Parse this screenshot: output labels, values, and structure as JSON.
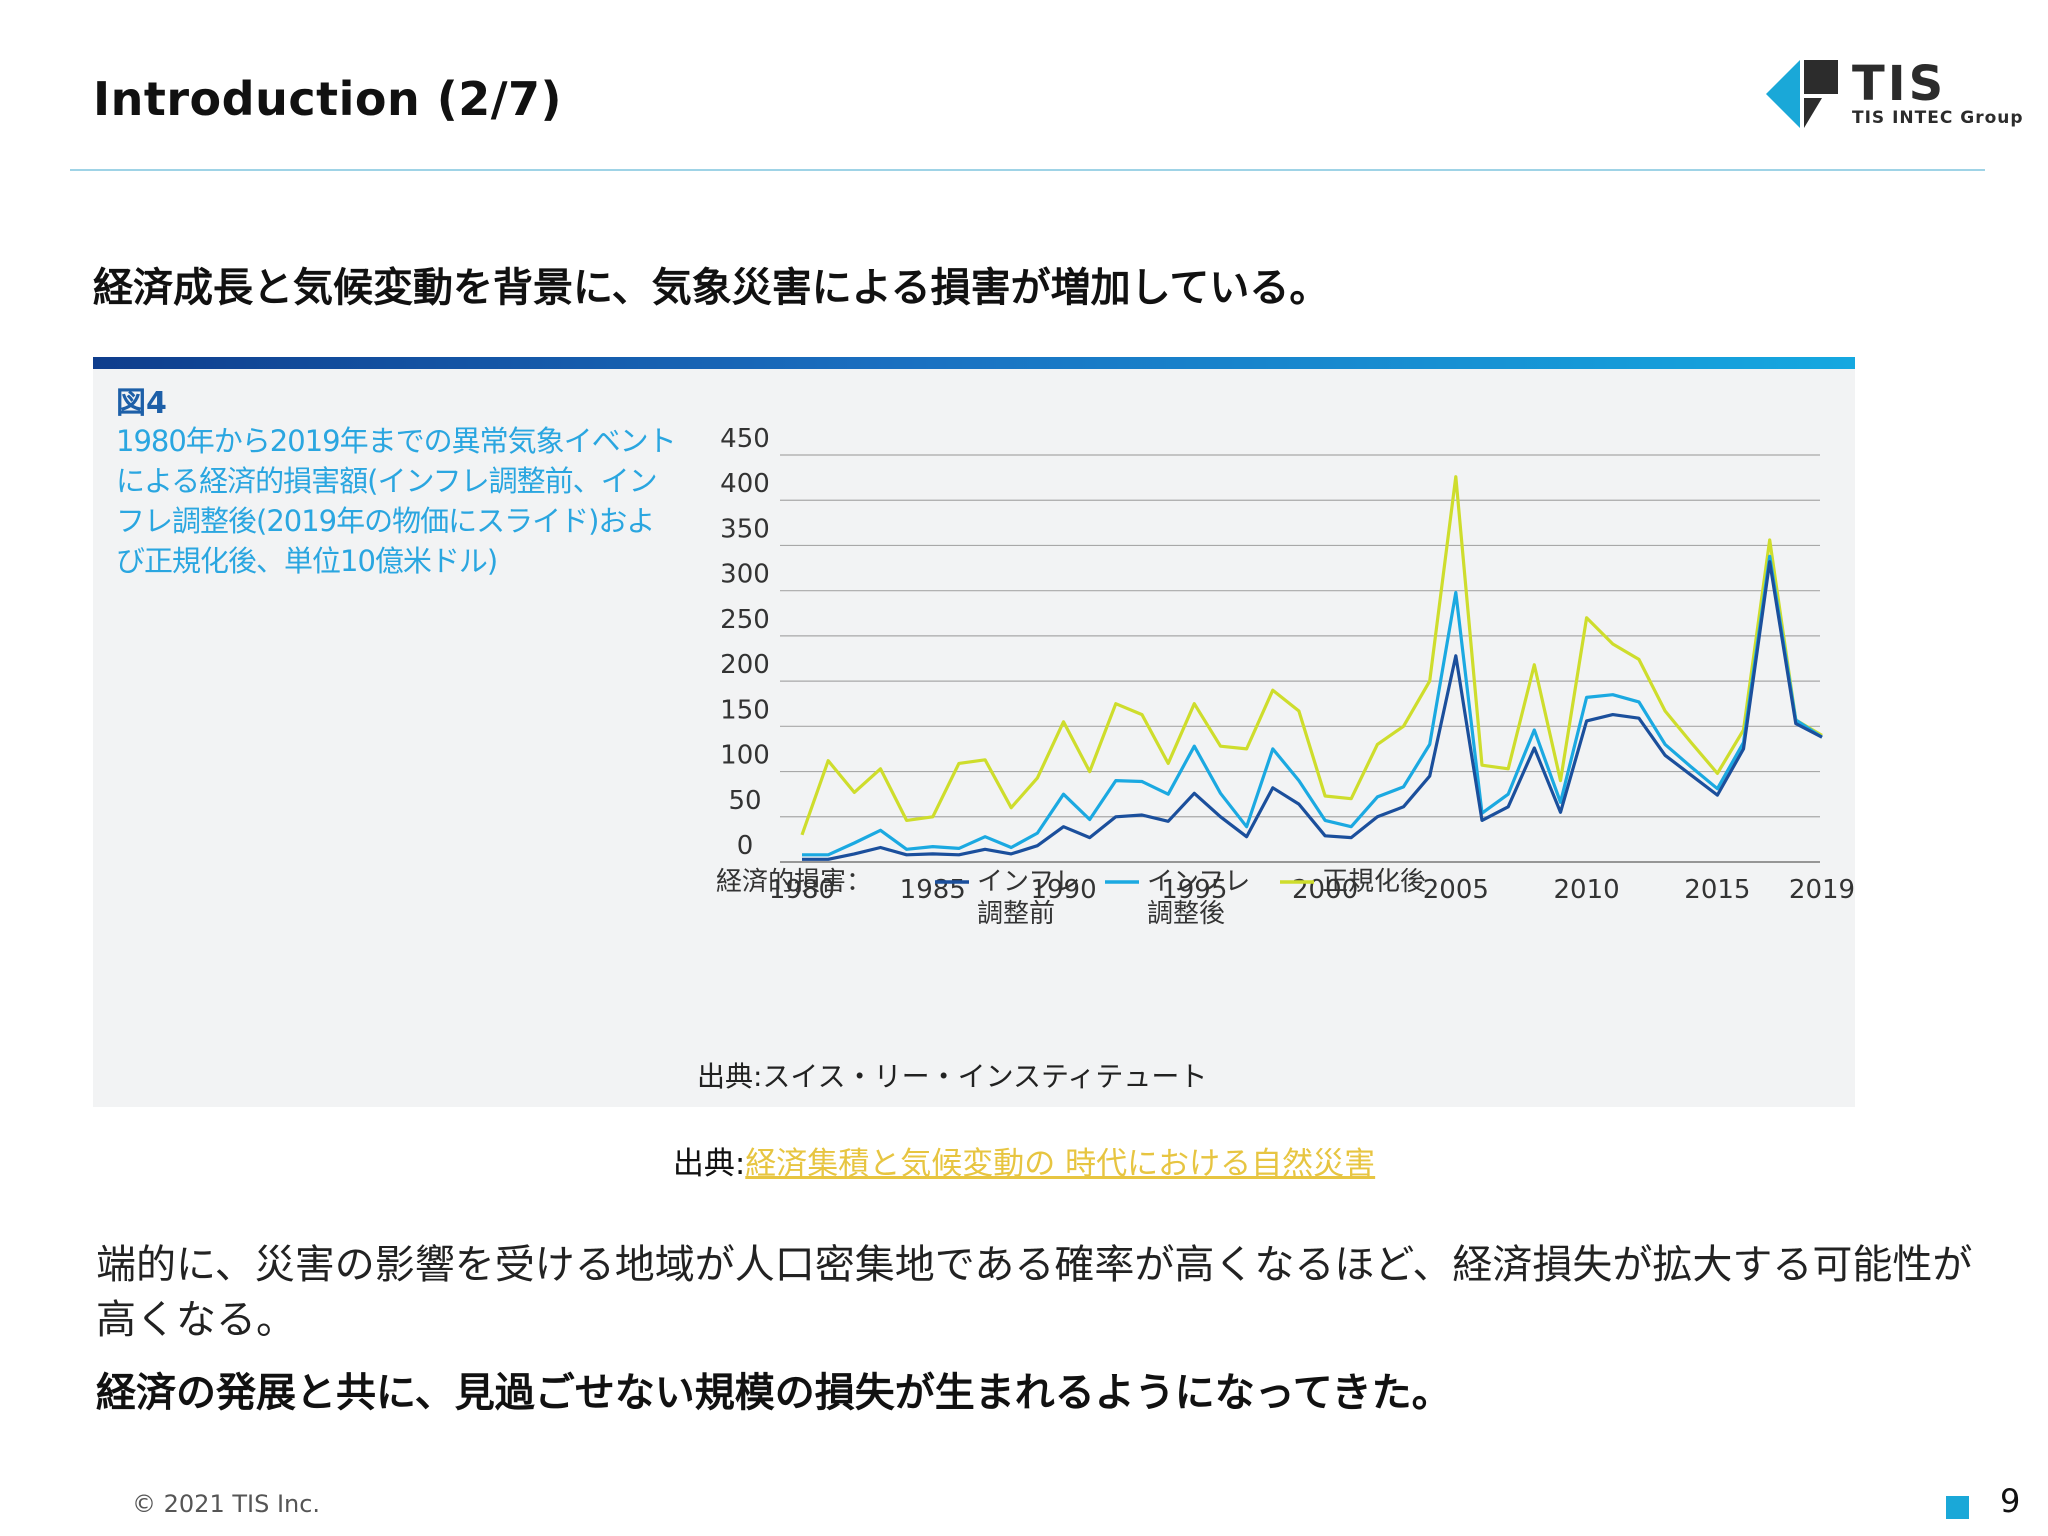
{
  "slide": {
    "title": "Introduction (2/7)",
    "headline": "経済成長と気候変動を背景に、気象災害による損害が増加している。",
    "logo": {
      "name": "TIS",
      "subtitle": "TIS INTEC Group",
      "colors": {
        "primary": "#1aa8d8",
        "dark": "#2c2c2c"
      }
    },
    "figure": {
      "label": "図4",
      "description_lines": [
        "1980年から2019年までの異常気象イベント",
        "による経済的損害額(インフレ調整前、イン",
        "フレ調整後(2019年の物価にスライド)およ",
        "び正規化後、単位10億米ドル)"
      ],
      "legend_prefix": "経済的損害：",
      "source": "出典:スイス・リー・インスティテュート"
    },
    "source_label": "出典:",
    "source_link_text": "経済集積と気候変動の 時代における自然災害",
    "body_text": "端的に、災害の影響を受ける地域が人口密集地である確率が高くなるほど、経済損失が拡大する可能性が高くなる。",
    "body_emphasis": "経済の発展と共に、見過ごせない規模の損失が生まれるようになってきた。",
    "footer": {
      "copyright": "© 2021 TIS Inc.",
      "page": "9"
    }
  },
  "chart_data": {
    "type": "line",
    "ylim": [
      0,
      450
    ],
    "yticks": [
      0,
      50,
      100,
      150,
      200,
      250,
      300,
      350,
      400,
      450
    ],
    "xticks": [
      1980,
      1985,
      1990,
      1995,
      2000,
      2005,
      2010,
      2015,
      2019
    ],
    "grid": true,
    "legend_position": "bottom-left",
    "x": [
      1980,
      1981,
      1982,
      1983,
      1984,
      1985,
      1986,
      1987,
      1988,
      1989,
      1990,
      1991,
      1992,
      1993,
      1994,
      1995,
      1996,
      1997,
      1998,
      1999,
      2000,
      2001,
      2002,
      2003,
      2004,
      2005,
      2006,
      2007,
      2008,
      2009,
      2010,
      2011,
      2012,
      2013,
      2014,
      2015,
      2016,
      2017,
      2018,
      2019
    ],
    "series": [
      {
        "name": "インフレ\n調整前",
        "color": "#1b4f9c",
        "values": [
          3,
          3,
          9,
          16,
          8,
          9,
          8,
          14,
          9,
          18,
          39,
          27,
          50,
          52,
          45,
          76,
          50,
          28,
          82,
          64,
          29,
          27,
          50,
          61,
          95,
          228,
          46,
          61,
          126,
          55,
          156,
          163,
          159,
          118,
          96,
          74,
          125,
          332,
          153,
          138
        ]
      },
      {
        "name": "インフレ\n調整後",
        "color": "#1ba9e1",
        "values": [
          8,
          8,
          21,
          35,
          14,
          17,
          15,
          28,
          16,
          32,
          75,
          47,
          90,
          89,
          75,
          128,
          76,
          39,
          125,
          90,
          46,
          39,
          72,
          83,
          130,
          298,
          54,
          75,
          146,
          66,
          182,
          185,
          177,
          130,
          105,
          81,
          132,
          338,
          157,
          138
        ]
      },
      {
        "name": "正規化後",
        "color": "#cedd2c",
        "values": [
          30,
          112,
          77,
          103,
          46,
          50,
          109,
          113,
          60,
          93,
          155,
          100,
          175,
          163,
          109,
          175,
          128,
          125,
          190,
          167,
          73,
          70,
          130,
          150,
          200,
          426,
          107,
          103,
          218,
          90,
          270,
          241,
          224,
          167,
          132,
          98,
          146,
          356,
          157,
          140
        ]
      }
    ]
  }
}
